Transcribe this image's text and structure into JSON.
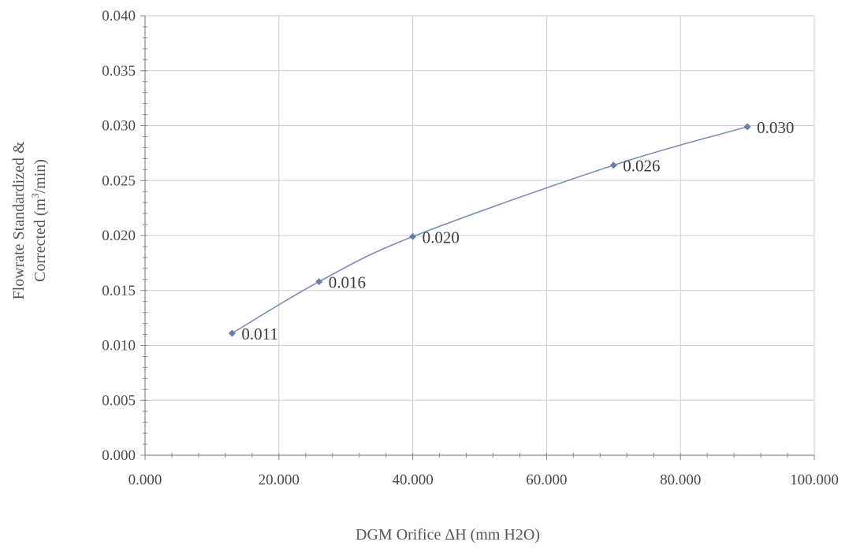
{
  "chart_data": {
    "type": "line",
    "title": "",
    "xlabel": "DGM Orifice ΔH (mm H2O)",
    "ylabel_line1": "Flowrate Standardized &",
    "ylabel_line2_prefix": "Corrected  (m",
    "ylabel_line2_sup": "3",
    "ylabel_line2_suffix": "/min)",
    "xlim": [
      0,
      100
    ],
    "ylim": [
      0,
      0.04
    ],
    "x_ticks": [
      0,
      20,
      40,
      60,
      80,
      100
    ],
    "x_tick_labels": [
      "0.000",
      "20.000",
      "40.000",
      "60.000",
      "80.000",
      "100.000"
    ],
    "y_ticks": [
      0,
      0.005,
      0.01,
      0.015,
      0.02,
      0.025,
      0.03,
      0.035,
      0.04
    ],
    "y_tick_labels": [
      "0.000",
      "0.005",
      "0.010",
      "0.015",
      "0.020",
      "0.025",
      "0.030",
      "0.035",
      "0.040"
    ],
    "grid": true,
    "series": [
      {
        "x": [
          13,
          26,
          40,
          70,
          90
        ],
        "y": [
          0.0111,
          0.0158,
          0.0199,
          0.0264,
          0.0299
        ],
        "labels": [
          "0.011",
          "0.016",
          "0.020",
          "0.026",
          "0.030"
        ],
        "color": "#7b8fb5",
        "marker_color": "#6a7ea6"
      }
    ],
    "gridline_color": "#c8d0c8",
    "axis_color": "#8a8a8a"
  }
}
